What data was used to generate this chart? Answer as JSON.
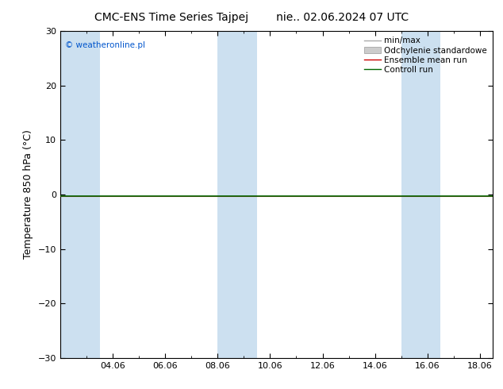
{
  "title_left": "CMC-ENS Time Series Tajpej",
  "title_right": "nie.. 02.06.2024 07 UTC",
  "ylabel": "Temperature 850 hPa (°C)",
  "ylim": [
    -30,
    30
  ],
  "yticks": [
    -30,
    -20,
    -10,
    0,
    10,
    20,
    30
  ],
  "xlim": [
    2.0,
    18.5
  ],
  "xtick_labels": [
    "04.06",
    "06.06",
    "08.06",
    "10.06",
    "12.06",
    "14.06",
    "16.06",
    "18.06"
  ],
  "xtick_positions": [
    4.0,
    6.0,
    8.0,
    10.0,
    12.0,
    14.0,
    16.0,
    18.0
  ],
  "background_color": "#ffffff",
  "plot_bg_color": "#ffffff",
  "watermark": "© weatheronline.pl",
  "watermark_color": "#0055cc",
  "legend_entries": [
    "min/max",
    "Odchylenie standardowe",
    "Ensemble mean run",
    "Controll run"
  ],
  "shaded_ranges": [
    [
      2.0,
      3.5
    ],
    [
      8.0,
      9.5
    ],
    [
      15.0,
      16.5
    ]
  ],
  "shaded_color": "#cce0f0",
  "line_y": -0.3,
  "ensemble_mean_color": "#cc0000",
  "control_run_color": "#006600",
  "min_max_color": "#aaaaaa",
  "std_dev_color": "#cccccc",
  "title_fontsize": 10,
  "tick_fontsize": 8,
  "ylabel_fontsize": 9,
  "legend_fontsize": 7.5
}
